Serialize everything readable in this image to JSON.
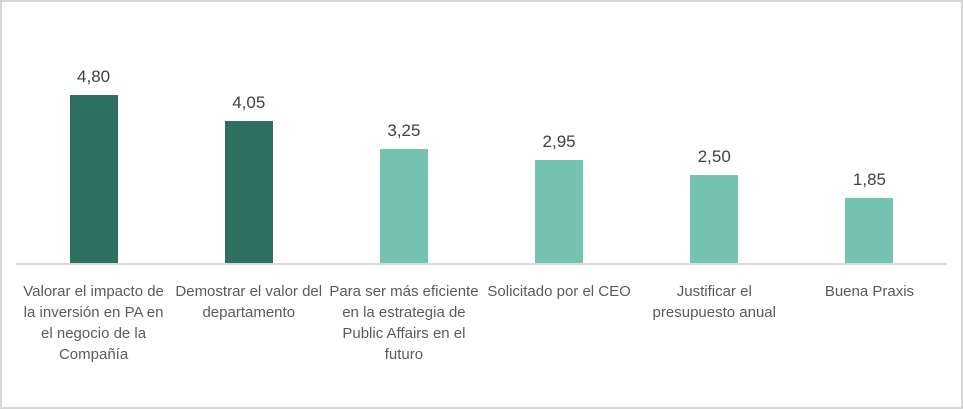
{
  "chart_data": {
    "type": "bar",
    "title": "",
    "xlabel": "",
    "ylabel": "",
    "categories": [
      "Valorar el impacto de la inversión en PA en el negocio de la Compañía",
      "Demostrar el valor del departamento",
      "Para ser más eficiente en la estrategia de Public Affairs en el futuro",
      "Solicitado por el CEO",
      "Justificar el presupuesto anual",
      "Buena Praxis"
    ],
    "values": [
      4.8,
      4.05,
      3.25,
      2.95,
      2.5,
      1.85
    ],
    "value_labels": [
      "4,80",
      "4,05",
      "3,25",
      "2,95",
      "2,50",
      "1,85"
    ],
    "bar_colors": [
      "#2e6f60",
      "#2e6f60",
      "#74c2b0",
      "#74c2b0",
      "#74c2b0",
      "#74c2b0"
    ],
    "ylim": [
      0,
      5
    ],
    "grid": false,
    "legend": false,
    "data_labels": true,
    "colors": {
      "dark_bar": "#2e6f60",
      "light_bar": "#74c2b0",
      "axis_line": "#d9d9d9",
      "frame_border": "#d6d6d6",
      "value_label_text": "#404040",
      "category_label_text": "#5a5a5a",
      "background": "#ffffff"
    }
  }
}
